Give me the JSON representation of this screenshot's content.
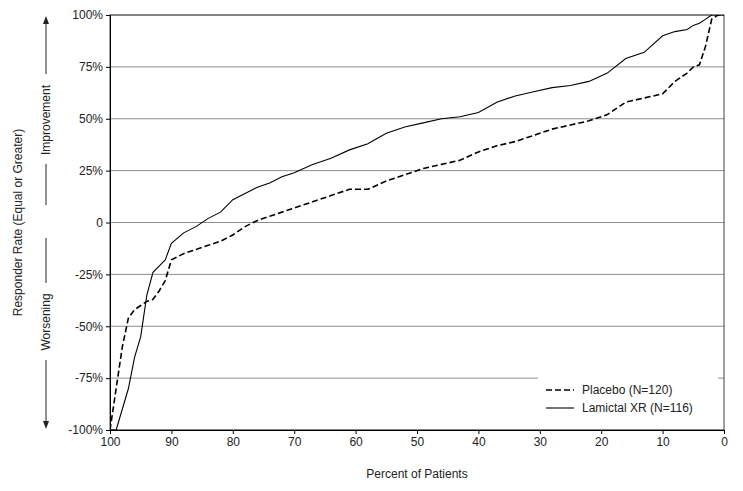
{
  "chart_data": {
    "type": "line",
    "x_label": "Percent of Patients",
    "y_label": "Responder Rate (Equal or Greater)",
    "annotations": [
      "Improvement",
      "Worsening"
    ],
    "x": [
      100,
      99,
      98,
      97,
      96,
      95,
      94,
      93,
      92,
      91,
      90,
      88,
      86,
      84,
      82,
      80,
      78,
      76,
      74,
      72,
      70,
      67,
      64,
      61,
      58,
      55,
      52,
      49,
      46,
      43,
      40,
      37,
      34,
      31,
      28,
      25,
      22,
      19,
      16,
      13,
      10,
      8,
      6,
      5,
      4,
      3,
      2,
      1,
      0
    ],
    "series": [
      {
        "name": "Placebo (N=120)",
        "color": "#000000",
        "line_style": "dashed",
        "values": [
          -100,
          -80,
          -60,
          -46,
          -42,
          -40,
          -38,
          -37,
          -33,
          -28,
          -18,
          -15,
          -13,
          -11,
          -9,
          -6,
          -2,
          1,
          3,
          5,
          7,
          10,
          13,
          16,
          16,
          20,
          23,
          26,
          28,
          30,
          34,
          37,
          39,
          42,
          45,
          47,
          49,
          52,
          58,
          60,
          62,
          68,
          72,
          75,
          76,
          85,
          98,
          100,
          100
        ]
      },
      {
        "name": "Lamictal XR (N=116)",
        "color": "#000000",
        "line_style": "solid",
        "values": [
          -100,
          -100,
          -90,
          -80,
          -65,
          -55,
          -35,
          -24,
          -21,
          -18,
          -10,
          -5,
          -2,
          2,
          5,
          11,
          14,
          17,
          19,
          22,
          24,
          28,
          31,
          35,
          38,
          43,
          46,
          48,
          50,
          51,
          53,
          58,
          61,
          63,
          65,
          66,
          68,
          72,
          79,
          82,
          90,
          92,
          93,
          95,
          96,
          98,
          100,
          100,
          100
        ]
      }
    ],
    "xlim": [
      100,
      0
    ],
    "xticks": [
      100,
      90,
      80,
      70,
      60,
      50,
      40,
      30,
      20,
      10,
      0
    ],
    "ylim": [
      -100,
      100
    ],
    "yticks": [
      {
        "value": -100,
        "label": "-100%"
      },
      {
        "value": -75,
        "label": "-75%"
      },
      {
        "value": -50,
        "label": "-50%"
      },
      {
        "value": -25,
        "label": "-25%"
      },
      0,
      {
        "value": 25,
        "label": "25%"
      },
      {
        "value": 50,
        "label": "50%"
      },
      {
        "value": 75,
        "label": "75%"
      },
      {
        "value": 100,
        "label": "100%"
      }
    ],
    "grid": true,
    "legend": "bottom-right"
  }
}
